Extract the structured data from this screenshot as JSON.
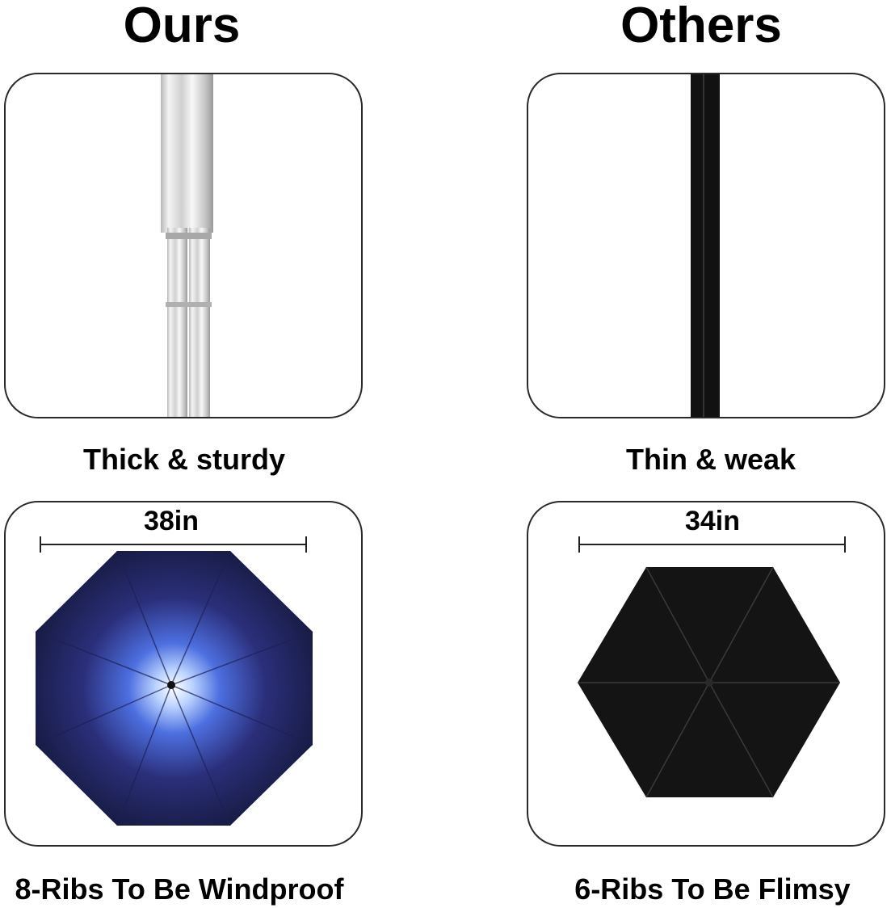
{
  "columns": [
    {
      "title": "Ours",
      "shaft_caption": "Thick & sturdy",
      "width_label": "38in",
      "ribs_caption": "8-Ribs To Be Windproof"
    },
    {
      "title": "Others",
      "shaft_caption": "Thin & weak",
      "width_label": "34in",
      "ribs_caption": "6-Ribs To Be Flimsy"
    }
  ],
  "colors": {
    "ours_shaft": "#d9d9d9",
    "others_shaft": "#111111",
    "ours_canopy": "#2b2f7a",
    "others_canopy": "#141414"
  }
}
